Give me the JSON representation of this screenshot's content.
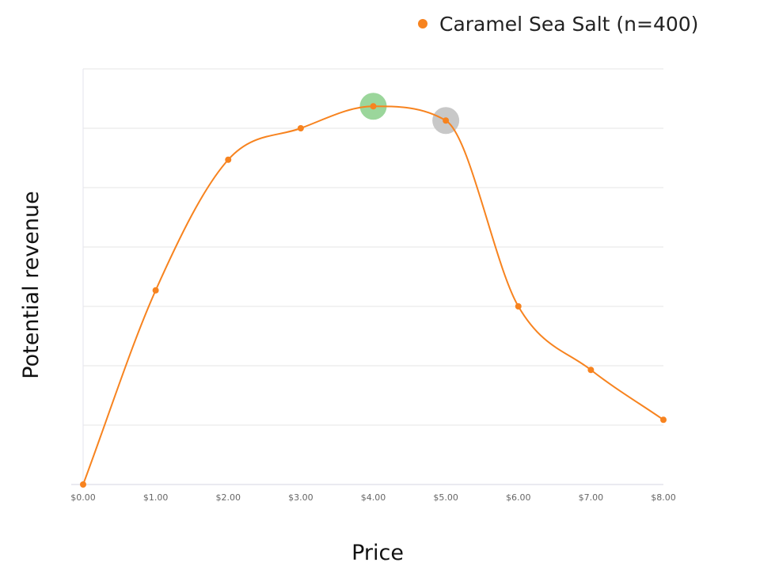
{
  "chart_data": {
    "type": "line",
    "title": "",
    "xlabel": "Price",
    "ylabel": "Potential revenue",
    "x_ticks": [
      "$0.00",
      "$1.00",
      "$2.00",
      "$3.00",
      "$4.00",
      "$5.00",
      "$6.00",
      "$7.00",
      "$8.00"
    ],
    "xlim": [
      0,
      8
    ],
    "ylim": [
      0,
      7
    ],
    "y_tick_labels_shown": false,
    "grid": {
      "horizontal": true,
      "vertical": false
    },
    "legend_position": "top-right",
    "series": [
      {
        "name": "Caramel Sea Salt (n=400)",
        "color": "#F7831F",
        "smooth": true,
        "x": [
          0,
          1,
          2,
          3,
          4,
          5,
          6,
          7,
          8
        ],
        "y": [
          0,
          3.27,
          5.47,
          6.0,
          6.37,
          6.13,
          3.0,
          1.93,
          1.09
        ]
      }
    ],
    "highlights": [
      {
        "x": 4,
        "y": 6.37,
        "color": "#9BD69B"
      },
      {
        "x": 5,
        "y": 6.13,
        "color": "#C8C8C8"
      }
    ]
  }
}
